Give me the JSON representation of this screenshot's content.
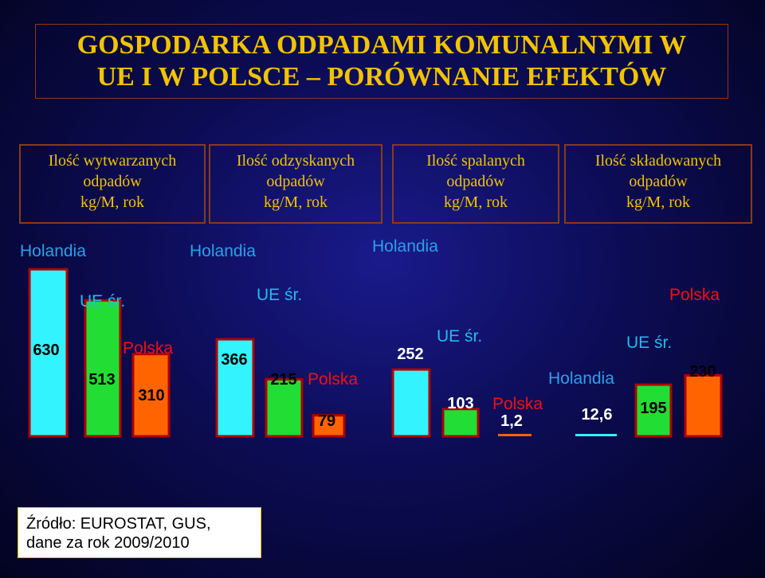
{
  "title": {
    "line1": "GOSPODARKA ODPADAMI KOMUNALNYMI W",
    "line2": "UE I W POLSCE – PORÓWNANIE EFEKTÓW"
  },
  "headers": [
    {
      "line1": "Ilość wytwarzanych",
      "line2": "odpadów",
      "line3": "kg/M, rok"
    },
    {
      "line1": "Ilość odzyskanych",
      "line2": "odpadów",
      "line3": "kg/M, rok"
    },
    {
      "line1": "Ilość spalanych",
      "line2": "odpadów",
      "line3": "kg/M, rok"
    },
    {
      "line1": "Ilość składowanych",
      "line2": "odpadów",
      "line3": "kg/M, rok"
    }
  ],
  "source": {
    "line1": "Źródło: EUROSTAT, GUS,",
    "line2": "dane za rok 2009/2010"
  },
  "colors": {
    "holandia": "#33f3ff",
    "ue": "#22dd33",
    "polska": "#ff6400",
    "bar_border": "#b00000",
    "label_holandia": "#2aa0e8",
    "label_ue": "#22bbee",
    "label_polska": "#ee1111",
    "value_text": "#000000",
    "title": "#f2c300"
  },
  "chart_data": [
    {
      "type": "bar",
      "title": "Ilość wytwarzanych odpadów kg/M, rok",
      "categories": [
        "Holandia",
        "UE śr.",
        "Polska"
      ],
      "values": [
        630,
        513,
        310
      ],
      "value_labels": [
        "630",
        "513",
        "310"
      ]
    },
    {
      "type": "bar",
      "title": "Ilość odzyskanych odpadów kg/M, rok",
      "categories": [
        "Holandia",
        "UE śr.",
        "Polska"
      ],
      "values": [
        366,
        215,
        79
      ],
      "value_labels": [
        "366",
        "215",
        "79"
      ]
    },
    {
      "type": "bar",
      "title": "Ilość spalanych odpadów kg/M, rok",
      "categories": [
        "Holandia",
        "UE śr.",
        "Polska"
      ],
      "values": [
        252,
        103,
        1.2
      ],
      "value_labels": [
        "252",
        "103",
        "1,2"
      ]
    },
    {
      "type": "bar",
      "title": "Ilość składowanych odpadów kg/M, rok",
      "categories": [
        "Holandia",
        "UE śr.",
        "Polska"
      ],
      "values": [
        12.6,
        195,
        230
      ],
      "value_labels": [
        "12,6",
        "195",
        "230"
      ]
    }
  ]
}
